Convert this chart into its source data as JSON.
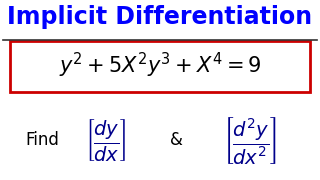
{
  "title": "Implicit Differentiation",
  "title_color": "#0000FF",
  "title_fontsize": 17,
  "bg_color": "#FFFFFF",
  "line_color": "#333333",
  "equation_color": "#000000",
  "equation_fontsize": 15,
  "box_edge_color": "#CC0000",
  "find_text": "Find",
  "find_color": "#000000",
  "find_fontsize": 12,
  "frac_color": "#00008B",
  "amp_text": "&",
  "amp_color": "#000000",
  "amp_fontsize": 12
}
